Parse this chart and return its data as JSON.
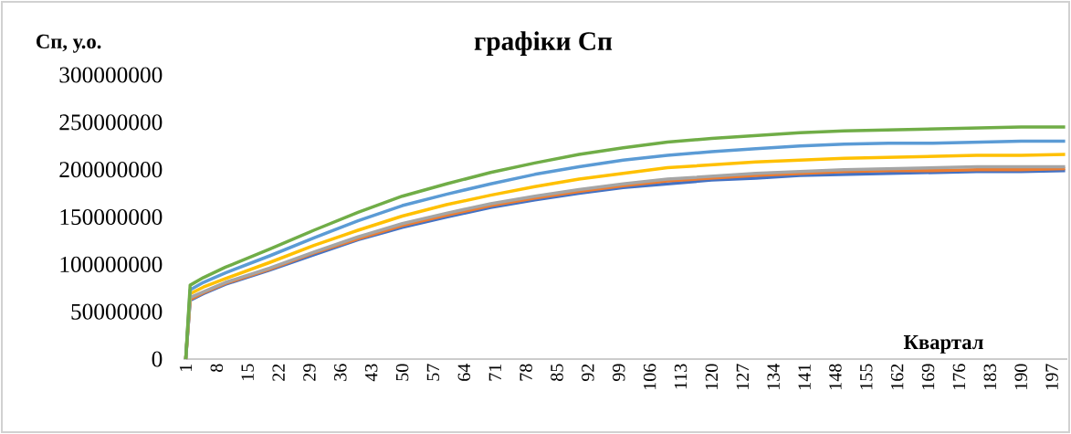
{
  "chart_data": {
    "type": "line",
    "title": "графіки Сп",
    "ylabel": "Сп, у.о.",
    "xlabel": "Квартал",
    "x": [
      1,
      2,
      5,
      10,
      20,
      30,
      40,
      50,
      60,
      70,
      80,
      90,
      100,
      110,
      120,
      130,
      140,
      150,
      160,
      170,
      180,
      190,
      200
    ],
    "xlim": [
      0.5,
      200.5
    ],
    "xticks": [
      1,
      8,
      15,
      22,
      29,
      36,
      43,
      50,
      57,
      64,
      71,
      78,
      85,
      92,
      99,
      106,
      113,
      120,
      127,
      134,
      141,
      148,
      155,
      162,
      169,
      176,
      183,
      190,
      197
    ],
    "ylim": [
      0,
      300000000
    ],
    "yticks": [
      0,
      50000000,
      100000000,
      150000000,
      200000000,
      250000000,
      300000000
    ],
    "series": [
      {
        "color": "#4472c4",
        "values": [
          0,
          62000000,
          69000000,
          79000000,
          94000000,
          110000000,
          126000000,
          139000000,
          150000000,
          160000000,
          168000000,
          175000000,
          181000000,
          185000000,
          189000000,
          191000000,
          194000000,
          195000000,
          196000000,
          197000000,
          198000000,
          198000000,
          199000000
        ]
      },
      {
        "color": "#ed7d31",
        "values": [
          0,
          63000000,
          70000000,
          80000000,
          95000000,
          112000000,
          127000000,
          141000000,
          152000000,
          162000000,
          170000000,
          177000000,
          183000000,
          188000000,
          191000000,
          194000000,
          196000000,
          198000000,
          199000000,
          199000000,
          200000000,
          200000000,
          201000000
        ]
      },
      {
        "color": "#a5a5a5",
        "values": [
          0,
          65000000,
          71000000,
          81000000,
          96000000,
          113000000,
          129000000,
          143000000,
          154000000,
          164000000,
          172000000,
          179000000,
          185000000,
          190000000,
          193000000,
          196000000,
          198000000,
          200000000,
          201000000,
          202000000,
          203000000,
          203000000,
          203000000
        ]
      },
      {
        "color": "#ffc000",
        "values": [
          0,
          69000000,
          76000000,
          85000000,
          102000000,
          120000000,
          136000000,
          151000000,
          163000000,
          173000000,
          182000000,
          190000000,
          196000000,
          202000000,
          205000000,
          208000000,
          210000000,
          212000000,
          213000000,
          214000000,
          215000000,
          215000000,
          216000000
        ]
      },
      {
        "color": "#5b9bd5",
        "values": [
          0,
          73000000,
          81000000,
          91000000,
          109000000,
          128000000,
          146000000,
          162000000,
          174000000,
          185000000,
          195000000,
          203000000,
          210000000,
          215000000,
          219000000,
          222000000,
          225000000,
          227000000,
          228000000,
          228000000,
          229000000,
          230000000,
          230000000
        ]
      },
      {
        "color": "#70ad47",
        "values": [
          0,
          78000000,
          86000000,
          97000000,
          116000000,
          136000000,
          155000000,
          172000000,
          185000000,
          197000000,
          207000000,
          216000000,
          223000000,
          229000000,
          233000000,
          236000000,
          239000000,
          241000000,
          242000000,
          243000000,
          244000000,
          245000000,
          245000000
        ]
      }
    ]
  }
}
